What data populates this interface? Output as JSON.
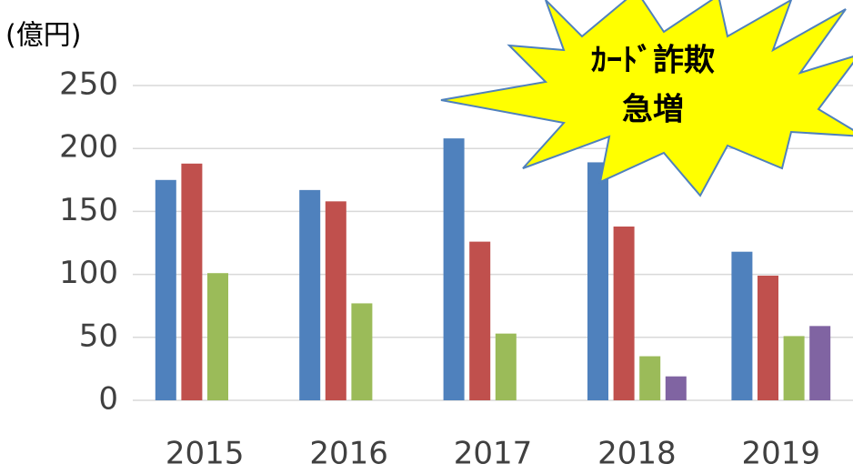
{
  "chart_data": {
    "type": "bar",
    "y_label": "(億円)",
    "annotation": [
      "ｶｰﾄﾞ詐欺",
      "急増"
    ],
    "categories": [
      "2015",
      "2016",
      "2017",
      "2018",
      "2019"
    ],
    "series": [
      {
        "color": "#4f81bd",
        "values": [
          175,
          167,
          208,
          189,
          118
        ]
      },
      {
        "color": "#c0504d",
        "values": [
          188,
          158,
          126,
          138,
          99
        ]
      },
      {
        "color": "#9bbb59",
        "values": [
          101,
          77,
          53,
          35,
          51
        ]
      },
      {
        "color": "#8064a2",
        "values": [
          null,
          null,
          null,
          19,
          59
        ]
      }
    ],
    "ylim": [
      0,
      250
    ],
    "yticks": [
      0,
      50,
      100,
      150,
      200,
      250
    ],
    "grid": true
  }
}
